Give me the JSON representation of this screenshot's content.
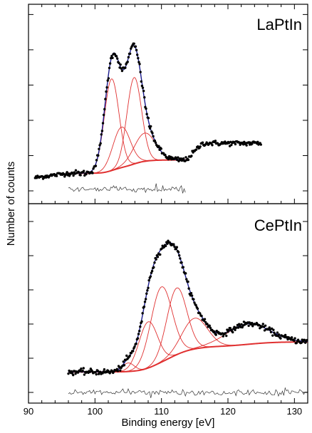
{
  "chart_data": {
    "type": "scatter",
    "xlabel": "Binding energy [eV]",
    "ylabel": "Number of counts",
    "xlim": [
      90,
      132
    ],
    "x_ticks": [
      90,
      100,
      110,
      120,
      130
    ],
    "x_tick_labels": [
      "90",
      "100",
      "110",
      "120",
      "130"
    ],
    "grid": false,
    "colors": {
      "data_points": "#000000",
      "envelope_fit": "#1a1a8c",
      "components": "#e03030",
      "background_la": "#33cc33",
      "residual": "#333333"
    },
    "panels": [
      {
        "title": "LaPtIn",
        "ylim": [
          0,
          1.05
        ],
        "y_ticks": [
          0,
          0.2,
          0.4,
          0.6,
          0.8,
          1.0
        ],
        "fit_range": [
          96,
          113.7
        ],
        "background": "shirley",
        "components": [
          {
            "center": 102.5,
            "height": 0.52,
            "width": 1.1
          },
          {
            "center": 104.0,
            "height": 0.23,
            "width": 1.3
          },
          {
            "center": 105.9,
            "height": 0.49,
            "width": 1.1
          },
          {
            "center": 107.5,
            "height": 0.16,
            "width": 1.6
          }
        ],
        "baseline": {
          "start": 0.1,
          "end": 0.175
        },
        "data_range": [
          91,
          125
        ],
        "data_tail_level": 0.27
      },
      {
        "title": "CePtIn",
        "ylim": [
          0,
          1.0
        ],
        "y_ticks": [
          0,
          0.2,
          0.4,
          0.6,
          0.8,
          1.0
        ],
        "fit_range": [
          96,
          132
        ],
        "background": "shirley",
        "components": [
          {
            "center": 105.0,
            "height": 0.05,
            "width": 0.9
          },
          {
            "center": 108.0,
            "height": 0.27,
            "width": 1.4
          },
          {
            "center": 110.0,
            "height": 0.44,
            "width": 1.6
          },
          {
            "center": 112.3,
            "height": 0.39,
            "width": 1.5
          },
          {
            "center": 115.0,
            "height": 0.18,
            "width": 1.9
          },
          {
            "center": 123.0,
            "height": 0.12,
            "width": 3.2
          }
        ],
        "baseline": {
          "start": 0.12,
          "end": 0.295
        },
        "data_range": [
          96,
          132
        ]
      }
    ]
  }
}
